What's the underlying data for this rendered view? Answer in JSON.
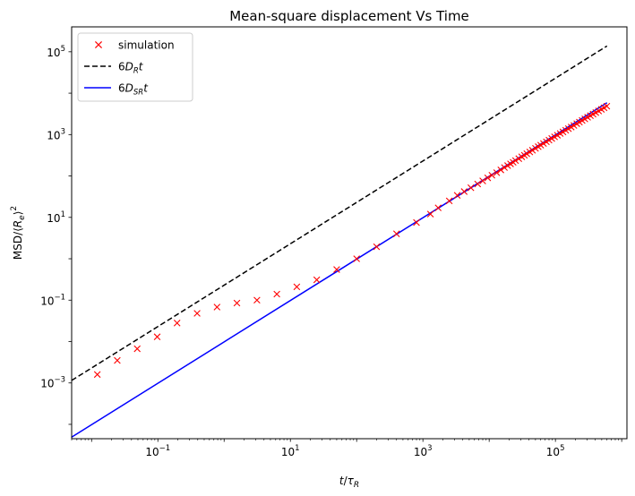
{
  "chart_data": {
    "type": "scatter",
    "title": "Mean-square displacement Vs Time",
    "xlabel": "t/τ_R",
    "ylabel": "MSD/⟨R_e⟩^2",
    "xscale": "log",
    "yscale": "log",
    "xlim": [
      0.005,
      1200000
    ],
    "ylim": [
      4.5e-05,
      400000
    ],
    "x_ticks": [
      {
        "value": 0.1,
        "base": "10",
        "exp": "−1"
      },
      {
        "value": 10,
        "base": "10",
        "exp": "1"
      },
      {
        "value": 1000,
        "base": "10",
        "exp": "3"
      },
      {
        "value": 100000,
        "base": "10",
        "exp": "5"
      }
    ],
    "y_ticks": [
      {
        "value": 0.001,
        "base": "10",
        "exp": "−3"
      },
      {
        "value": 0.1,
        "base": "10",
        "exp": "−1"
      },
      {
        "value": 10,
        "base": "10",
        "exp": "1"
      },
      {
        "value": 1000,
        "base": "10",
        "exp": "3"
      },
      {
        "value": 100000,
        "base": "10",
        "exp": "5"
      }
    ],
    "legend_position": "top-left",
    "grid": false,
    "series": [
      {
        "name": "simulation",
        "kind": "markers",
        "marker": "x",
        "color": "#ff0000",
        "x": [
          0.0122,
          0.0244,
          0.0488,
          0.0977,
          0.195,
          0.391,
          0.781,
          1.56,
          3.13,
          6.25,
          12.5,
          25,
          50,
          100,
          200,
          400,
          800,
          1300,
          1700,
          2500,
          3300,
          4200,
          5300,
          6700,
          8000,
          9500,
          11000,
          13000,
          15000,
          17000,
          19000,
          21000,
          23000,
          25000,
          28000,
          31000,
          34000,
          37000,
          41000,
          45000,
          50000,
          55000,
          60000,
          66000,
          73000,
          80000,
          88000,
          97000,
          107000,
          118000,
          130000,
          143000,
          157000,
          173000,
          190000,
          210000,
          230000,
          253000,
          278000,
          306000,
          337000,
          370000,
          407000,
          448000,
          493000,
          542000,
          596000
        ],
        "y": [
          0.0016,
          0.0035,
          0.0067,
          0.013,
          0.028,
          0.048,
          0.068,
          0.085,
          0.1,
          0.14,
          0.21,
          0.31,
          0.55,
          1.0,
          1.95,
          4.0,
          7.5,
          12,
          17,
          25,
          34,
          42,
          52,
          64,
          76,
          90,
          104,
          120,
          140,
          160,
          178,
          196,
          214,
          235,
          262,
          290,
          316,
          345,
          380,
          418,
          465,
          510,
          555,
          610,
          670,
          735,
          805,
          880,
          965,
          1060,
          1160,
          1270,
          1390,
          1520,
          1660,
          1830,
          2000,
          2190,
          2390,
          2620,
          2860,
          3120,
          3400,
          3720,
          4060,
          4430,
          4850
        ]
      },
      {
        "name": "6D_R t",
        "kind": "line",
        "color": "#000000",
        "dash": "dashed",
        "x": [
          0.005,
          600000
        ],
        "y": [
          0.00115,
          138000
        ]
      },
      {
        "name": "6D_SR t",
        "kind": "line",
        "color": "#0000ff",
        "dash": "solid",
        "x": [
          0.005,
          600000
        ],
        "y": [
          4.9e-05,
          5880
        ]
      }
    ]
  }
}
